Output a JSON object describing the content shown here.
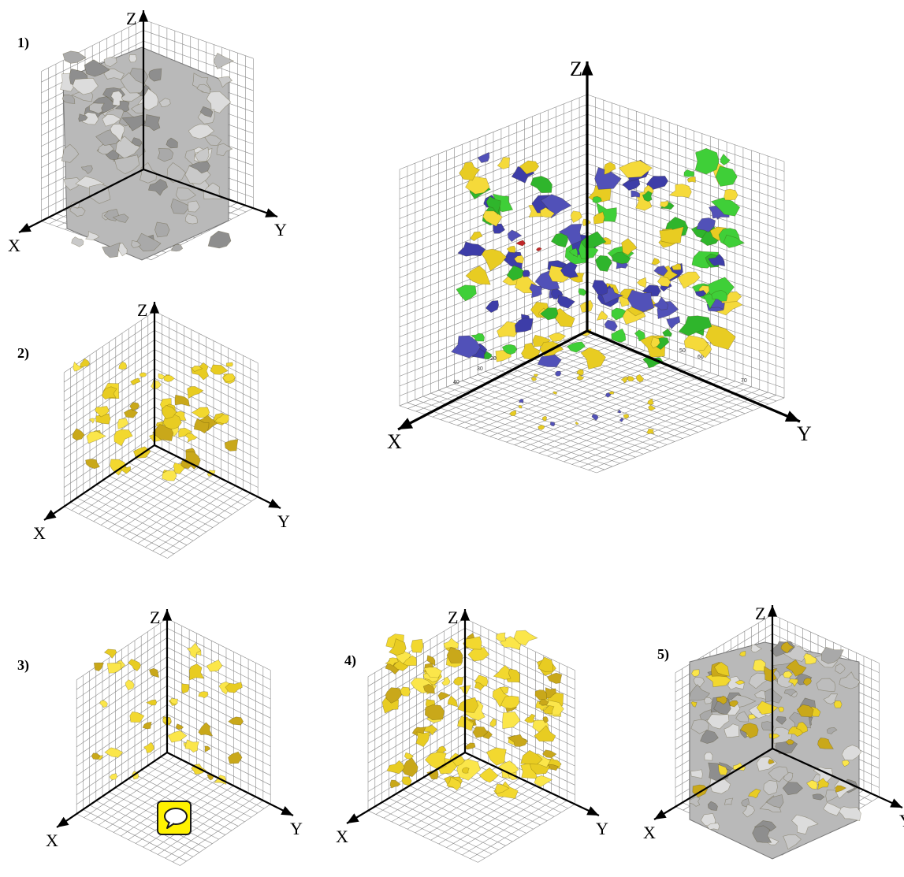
{
  "panels": [
    {
      "id": "p1",
      "label": "1)",
      "material": "gray"
    },
    {
      "id": "p2",
      "label": "2)",
      "material": "gold"
    },
    {
      "id": "p3",
      "label": "3)",
      "material": "gold"
    },
    {
      "id": "p4",
      "label": "4)",
      "material": "gold"
    },
    {
      "id": "p5",
      "label": "5)",
      "material": "gray-gold"
    },
    {
      "id": "main",
      "label": "",
      "material": "multi"
    }
  ],
  "axes": {
    "x": "X",
    "y": "Y",
    "z": "Z"
  },
  "colors": {
    "gray": "#b9b9b9",
    "gold": "#e8cc22",
    "green": "#3fcf38",
    "blue": "#5151b8",
    "red": "#c0262a",
    "grid": "#8a8a8a",
    "axis": "#000000"
  },
  "comment_icon": "speech-bubble-icon"
}
